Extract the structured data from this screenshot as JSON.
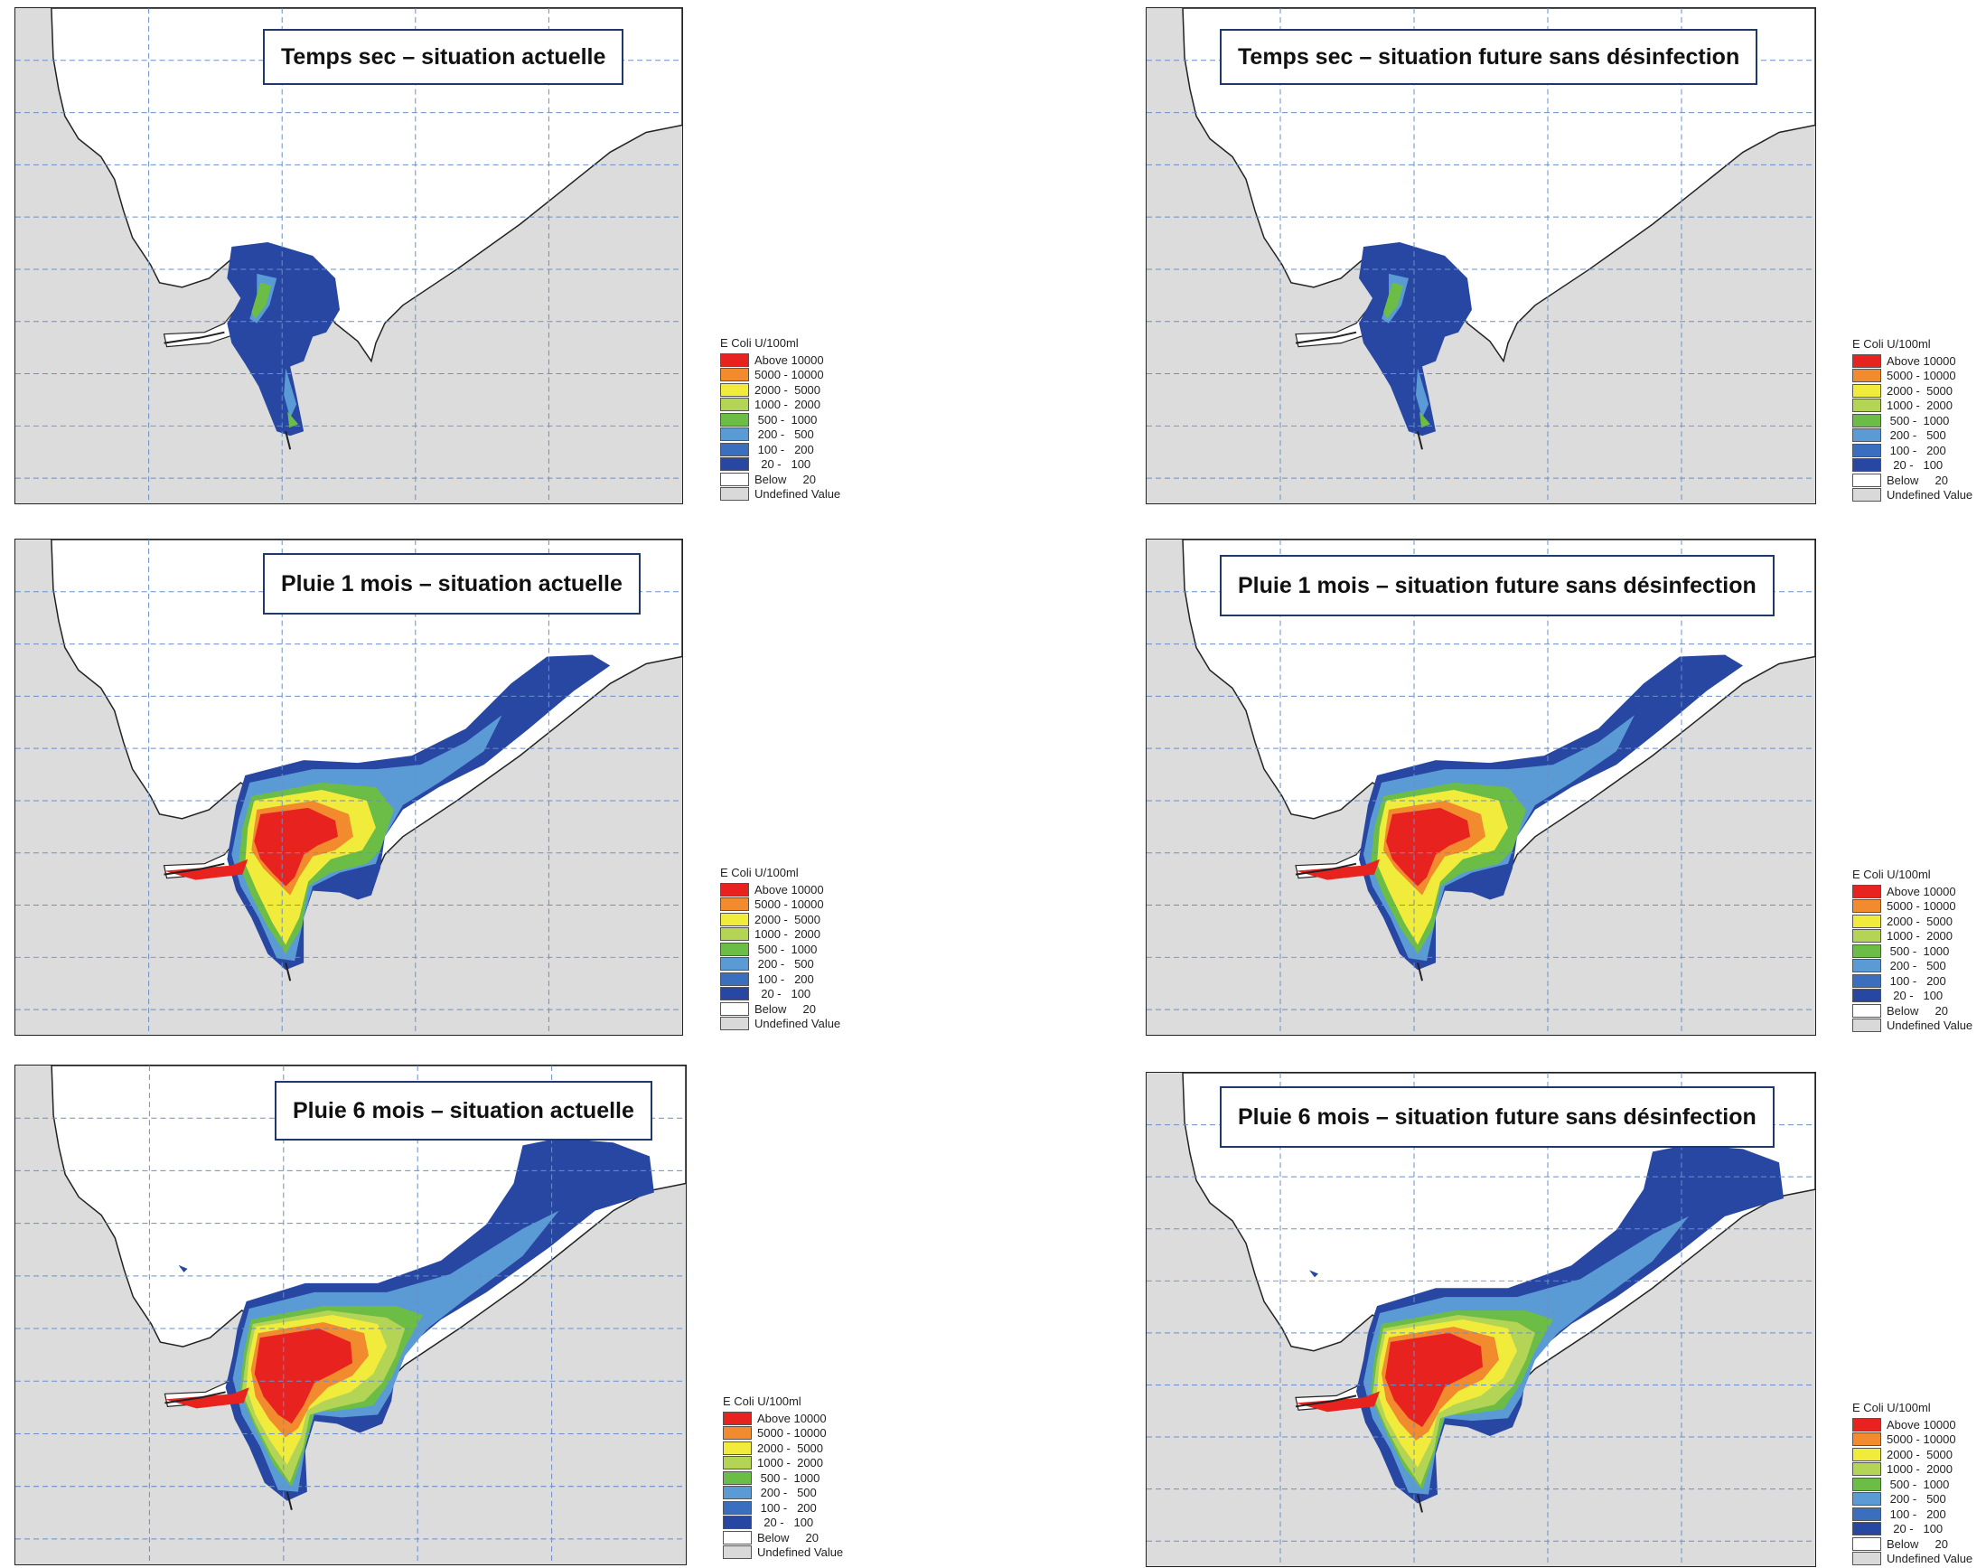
{
  "panels": [
    {
      "title": "Temps sec – situation actuelle",
      "scenario": "dry"
    },
    {
      "title": "Temps sec – situation future sans désinfection",
      "scenario": "dry-future"
    },
    {
      "title": "Pluie 1 mois – situation actuelle",
      "scenario": "rain1"
    },
    {
      "title": "Pluie 1 mois – situation future sans désinfection",
      "scenario": "rain1-future"
    },
    {
      "title": "Pluie 6 mois – situation actuelle",
      "scenario": "rain6"
    },
    {
      "title": "Pluie 6 mois – situation future sans désinfection",
      "scenario": "rain6-future"
    }
  ],
  "legend": {
    "title": "E Coli U/100ml",
    "items": [
      {
        "label": "Above 10000",
        "color": "#e8231f"
      },
      {
        "label": "5000 - 10000",
        "color": "#f28a2e"
      },
      {
        "label": "2000 -  5000",
        "color": "#f1ec3c"
      },
      {
        "label": "1000 -  2000",
        "color": "#b4d456"
      },
      {
        "label": " 500 -  1000",
        "color": "#6cbd45"
      },
      {
        "label": " 200 -   500",
        "color": "#5b9bd5"
      },
      {
        "label": " 100 -   200",
        "color": "#3a6fc0"
      },
      {
        "label": "  20 -   100",
        "color": "#2747a3"
      },
      {
        "label": "Below     20",
        "color": "#ffffff"
      },
      {
        "label": "Undefined Value",
        "color": "#d9d9d9"
      }
    ]
  },
  "colors": {
    "land": "#dcdcdc",
    "sea": "#ffffff",
    "grid": "#6a8fc9",
    "coast": "#222222"
  }
}
